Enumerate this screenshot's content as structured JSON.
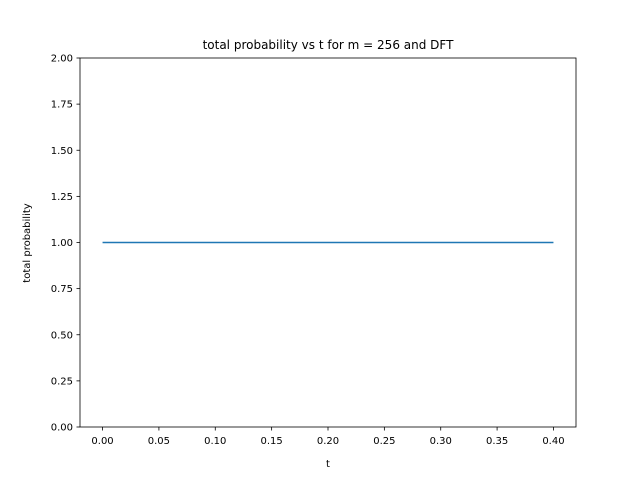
{
  "chart_data": {
    "type": "line",
    "title": "total probability vs t for m = 256 and DFT",
    "xlabel": "t",
    "ylabel": "total probability",
    "xlim": [
      -0.02,
      0.42
    ],
    "ylim": [
      0.0,
      2.0
    ],
    "x_ticks": [
      "0.00",
      "0.05",
      "0.10",
      "0.15",
      "0.20",
      "0.25",
      "0.30",
      "0.35",
      "0.40"
    ],
    "y_ticks": [
      "0.00",
      "0.25",
      "0.50",
      "0.75",
      "1.00",
      "1.25",
      "1.50",
      "1.75",
      "2.00"
    ],
    "grid": false,
    "series": [
      {
        "color": "#1f77b4",
        "x": [
          0.0,
          0.05,
          0.1,
          0.15,
          0.2,
          0.25,
          0.3,
          0.35,
          0.4
        ],
        "y": [
          1.0,
          1.0,
          1.0,
          1.0,
          1.0,
          1.0,
          1.0,
          1.0,
          1.0
        ]
      }
    ]
  }
}
